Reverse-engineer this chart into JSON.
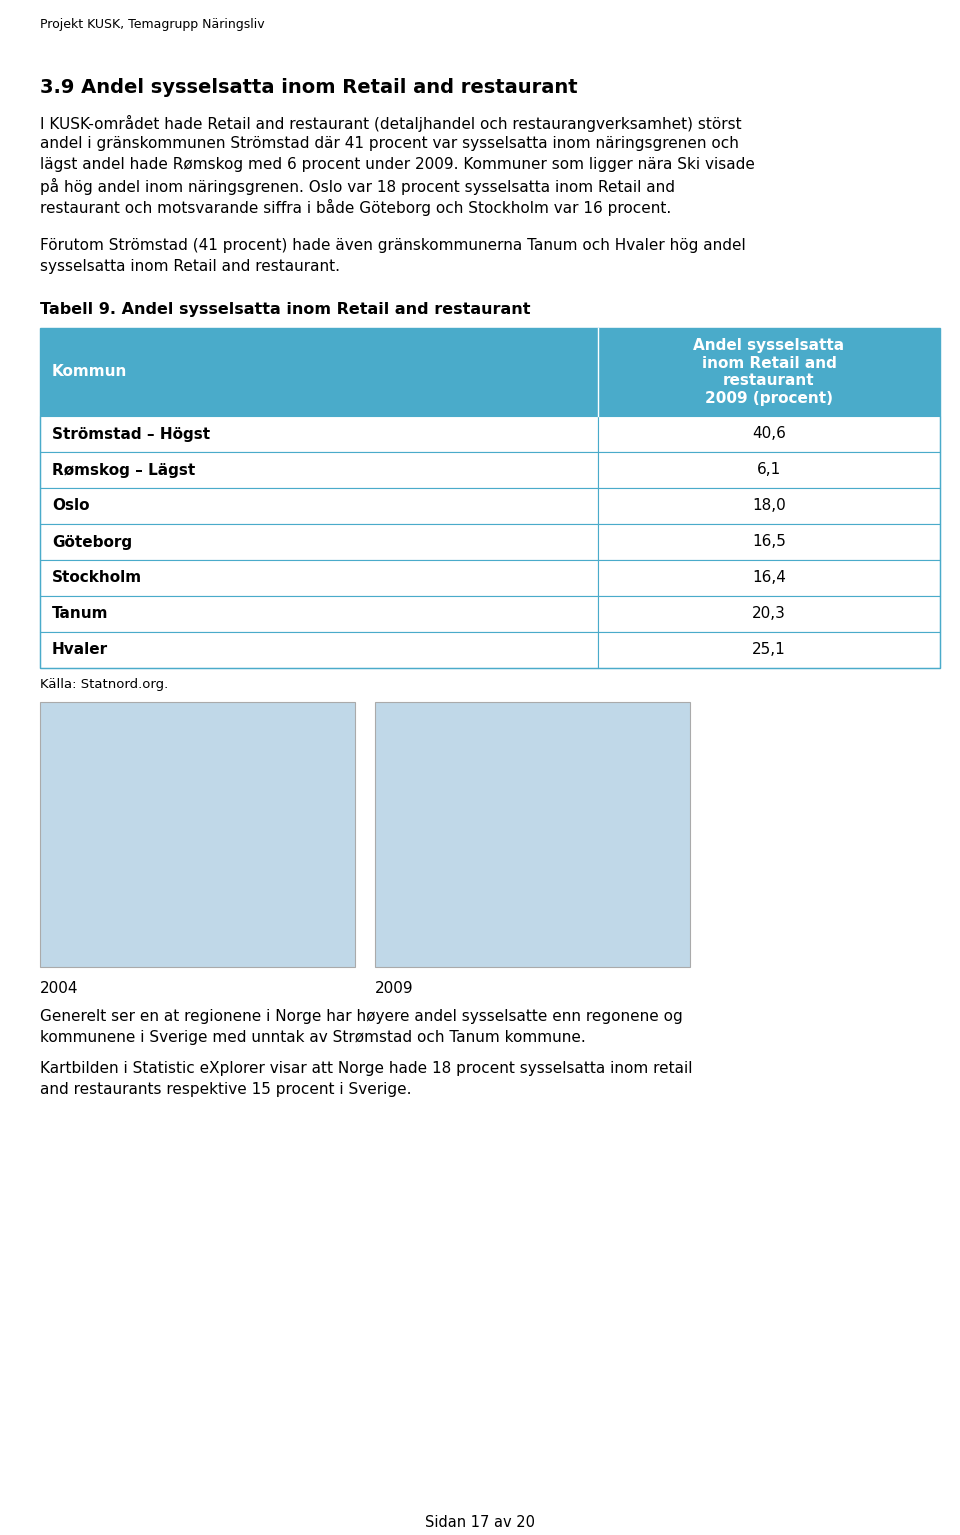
{
  "page_header": "Projekt KUSK, Temagrupp Näringsliv",
  "section_title": "3.9 Andel sysselsatta inom Retail and restaurant",
  "para1_parts": [
    {
      "text": "I KUSK-området hade ",
      "italic": false
    },
    {
      "text": "Retail and restaurant",
      "italic": true
    },
    {
      "text": " (detaljhandel och restaurangverksamhet) störst andel i gränskommunen Strömstad där 41 procent var sysselsatta inom näringsgrenen och lägst andel hade Rømskog med 6 procent under 2009. Kommuner som ligger nära Ski visade på hög andel inom näringsgrenen. Oslo var 18 procent sysselsatta inom ",
      "italic": false
    },
    {
      "text": "Retail and restaurant",
      "italic": true
    },
    {
      "text": " och motsvarande siffra i både Göteborg och Stockholm var 16 procent.",
      "italic": false
    }
  ],
  "para2_parts": [
    {
      "text": "Förutom Strömstad (41 procent) hade även gränskommunerna Tanum och Hvaler hög andel sysselsatta inom ",
      "italic": false
    },
    {
      "text": "Retail and restaurant",
      "italic": true
    },
    {
      "text": ".",
      "italic": false
    }
  ],
  "table_title": "Tabell 9. Andel sysselsatta inom Retail and restaurant",
  "table_header_col1": "Kommun",
  "table_header_col2": "Andel sysselsatta\ninom Retail and\nrestaurant\n2009 (procent)",
  "table_rows": [
    {
      "kommun": "Strömstad – Högst",
      "value": "40,6"
    },
    {
      "kommun": "Rømskog – Lägst",
      "value": "6,1"
    },
    {
      "kommun": "Oslo",
      "value": "18,0"
    },
    {
      "kommun": "Göteborg",
      "value": "16,5"
    },
    {
      "kommun": "Stockholm",
      "value": "16,4"
    },
    {
      "kommun": "Tanum",
      "value": "20,3"
    },
    {
      "kommun": "Hvaler",
      "value": "25,1"
    }
  ],
  "table_header_bg": "#4AABCA",
  "table_header_text_color": "#FFFFFF",
  "table_row_text_color": "#000000",
  "table_border_color": "#4AABCA",
  "source_text": "Källa: Statnord.org.",
  "map_year_left": "2004",
  "map_year_right": "2009",
  "footer_para1": "Generelt ser en at regionene i Norge har høyere andel sysselsatte enn regonene og kommunene i Sverige med unntak av Strømstad och Tanum kommune.",
  "footer_para2": "Kartbilden i Statistic eXplorer visar att  Norge hade 18 procent sysselsatta inom retail and restaurants respektive 15 procent i Sverige.",
  "page_footer": "Sidan 17 av 20",
  "background_color": "#FFFFFF",
  "text_color": "#000000",
  "map_left_color": "#C0D8E8",
  "map_right_color": "#C0D8E8"
}
